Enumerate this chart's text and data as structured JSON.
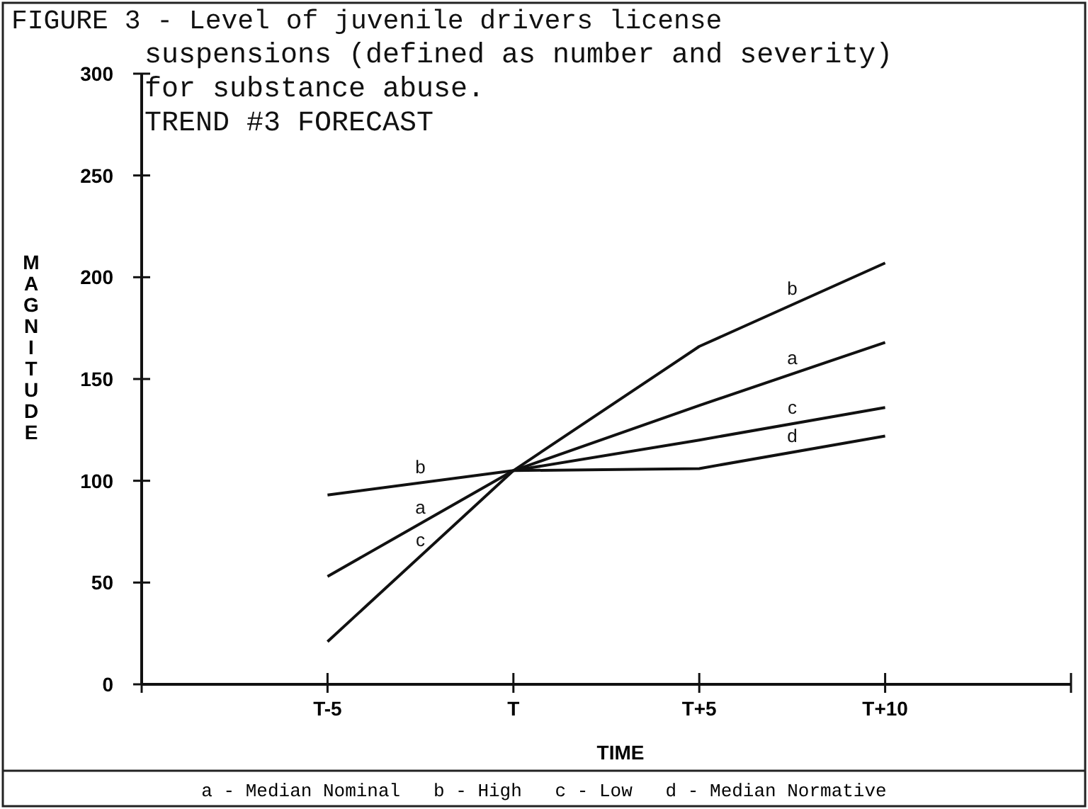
{
  "chart_data": {
    "type": "line",
    "title": "FIGURE 3 - Level of juvenile drivers license suspensions (defined as number and severity) for substance abuse.",
    "subtitle": "TREND #3 FORECAST",
    "xlabel": "TIME",
    "ylabel": "MAGNITUDE",
    "categories": [
      null,
      "T-5",
      "T",
      "T+5",
      "T+10",
      null
    ],
    "series": [
      {
        "name": "a",
        "color": "#111111",
        "values": [
          null,
          53,
          105,
          137,
          168,
          null
        ]
      },
      {
        "name": "b",
        "color": "#111111",
        "values": [
          null,
          93,
          105,
          166,
          207,
          null
        ]
      },
      {
        "name": "c",
        "color": "#111111",
        "values": [
          null,
          21,
          105,
          120,
          136,
          null
        ]
      },
      {
        "name": "d",
        "color": "#111111",
        "values": [
          null,
          null,
          105,
          106,
          122,
          null
        ]
      }
    ],
    "ylim": [
      0,
      300
    ],
    "yticks": [
      0,
      50,
      100,
      150,
      200,
      250,
      300
    ],
    "grid": false,
    "marker": "none",
    "line_style": "solid",
    "annotations": [
      "a - Median Nominal   b - High   c - Low   d - Median Normative"
    ]
  }
}
